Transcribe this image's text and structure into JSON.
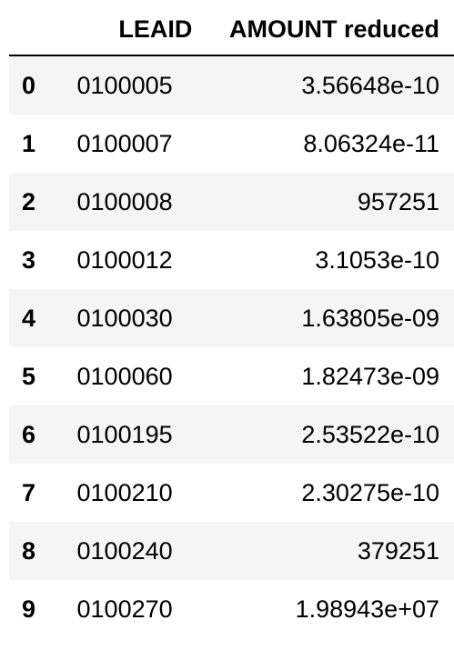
{
  "table": {
    "columns": {
      "index": "",
      "leaid": "LEAID",
      "amount": "AMOUNT reduced"
    },
    "rows": [
      {
        "index": "0",
        "leaid": "0100005",
        "amount": "3.56648e-10"
      },
      {
        "index": "1",
        "leaid": "0100007",
        "amount": "8.06324e-11"
      },
      {
        "index": "2",
        "leaid": "0100008",
        "amount": "957251"
      },
      {
        "index": "3",
        "leaid": "0100012",
        "amount": "3.1053e-10"
      },
      {
        "index": "4",
        "leaid": "0100030",
        "amount": "1.63805e-09"
      },
      {
        "index": "5",
        "leaid": "0100060",
        "amount": "1.82473e-09"
      },
      {
        "index": "6",
        "leaid": "0100195",
        "amount": "2.53522e-10"
      },
      {
        "index": "7",
        "leaid": "0100210",
        "amount": "2.30275e-10"
      },
      {
        "index": "8",
        "leaid": "0100240",
        "amount": "379251"
      },
      {
        "index": "9",
        "leaid": "0100270",
        "amount": "1.98943e+07"
      }
    ]
  }
}
